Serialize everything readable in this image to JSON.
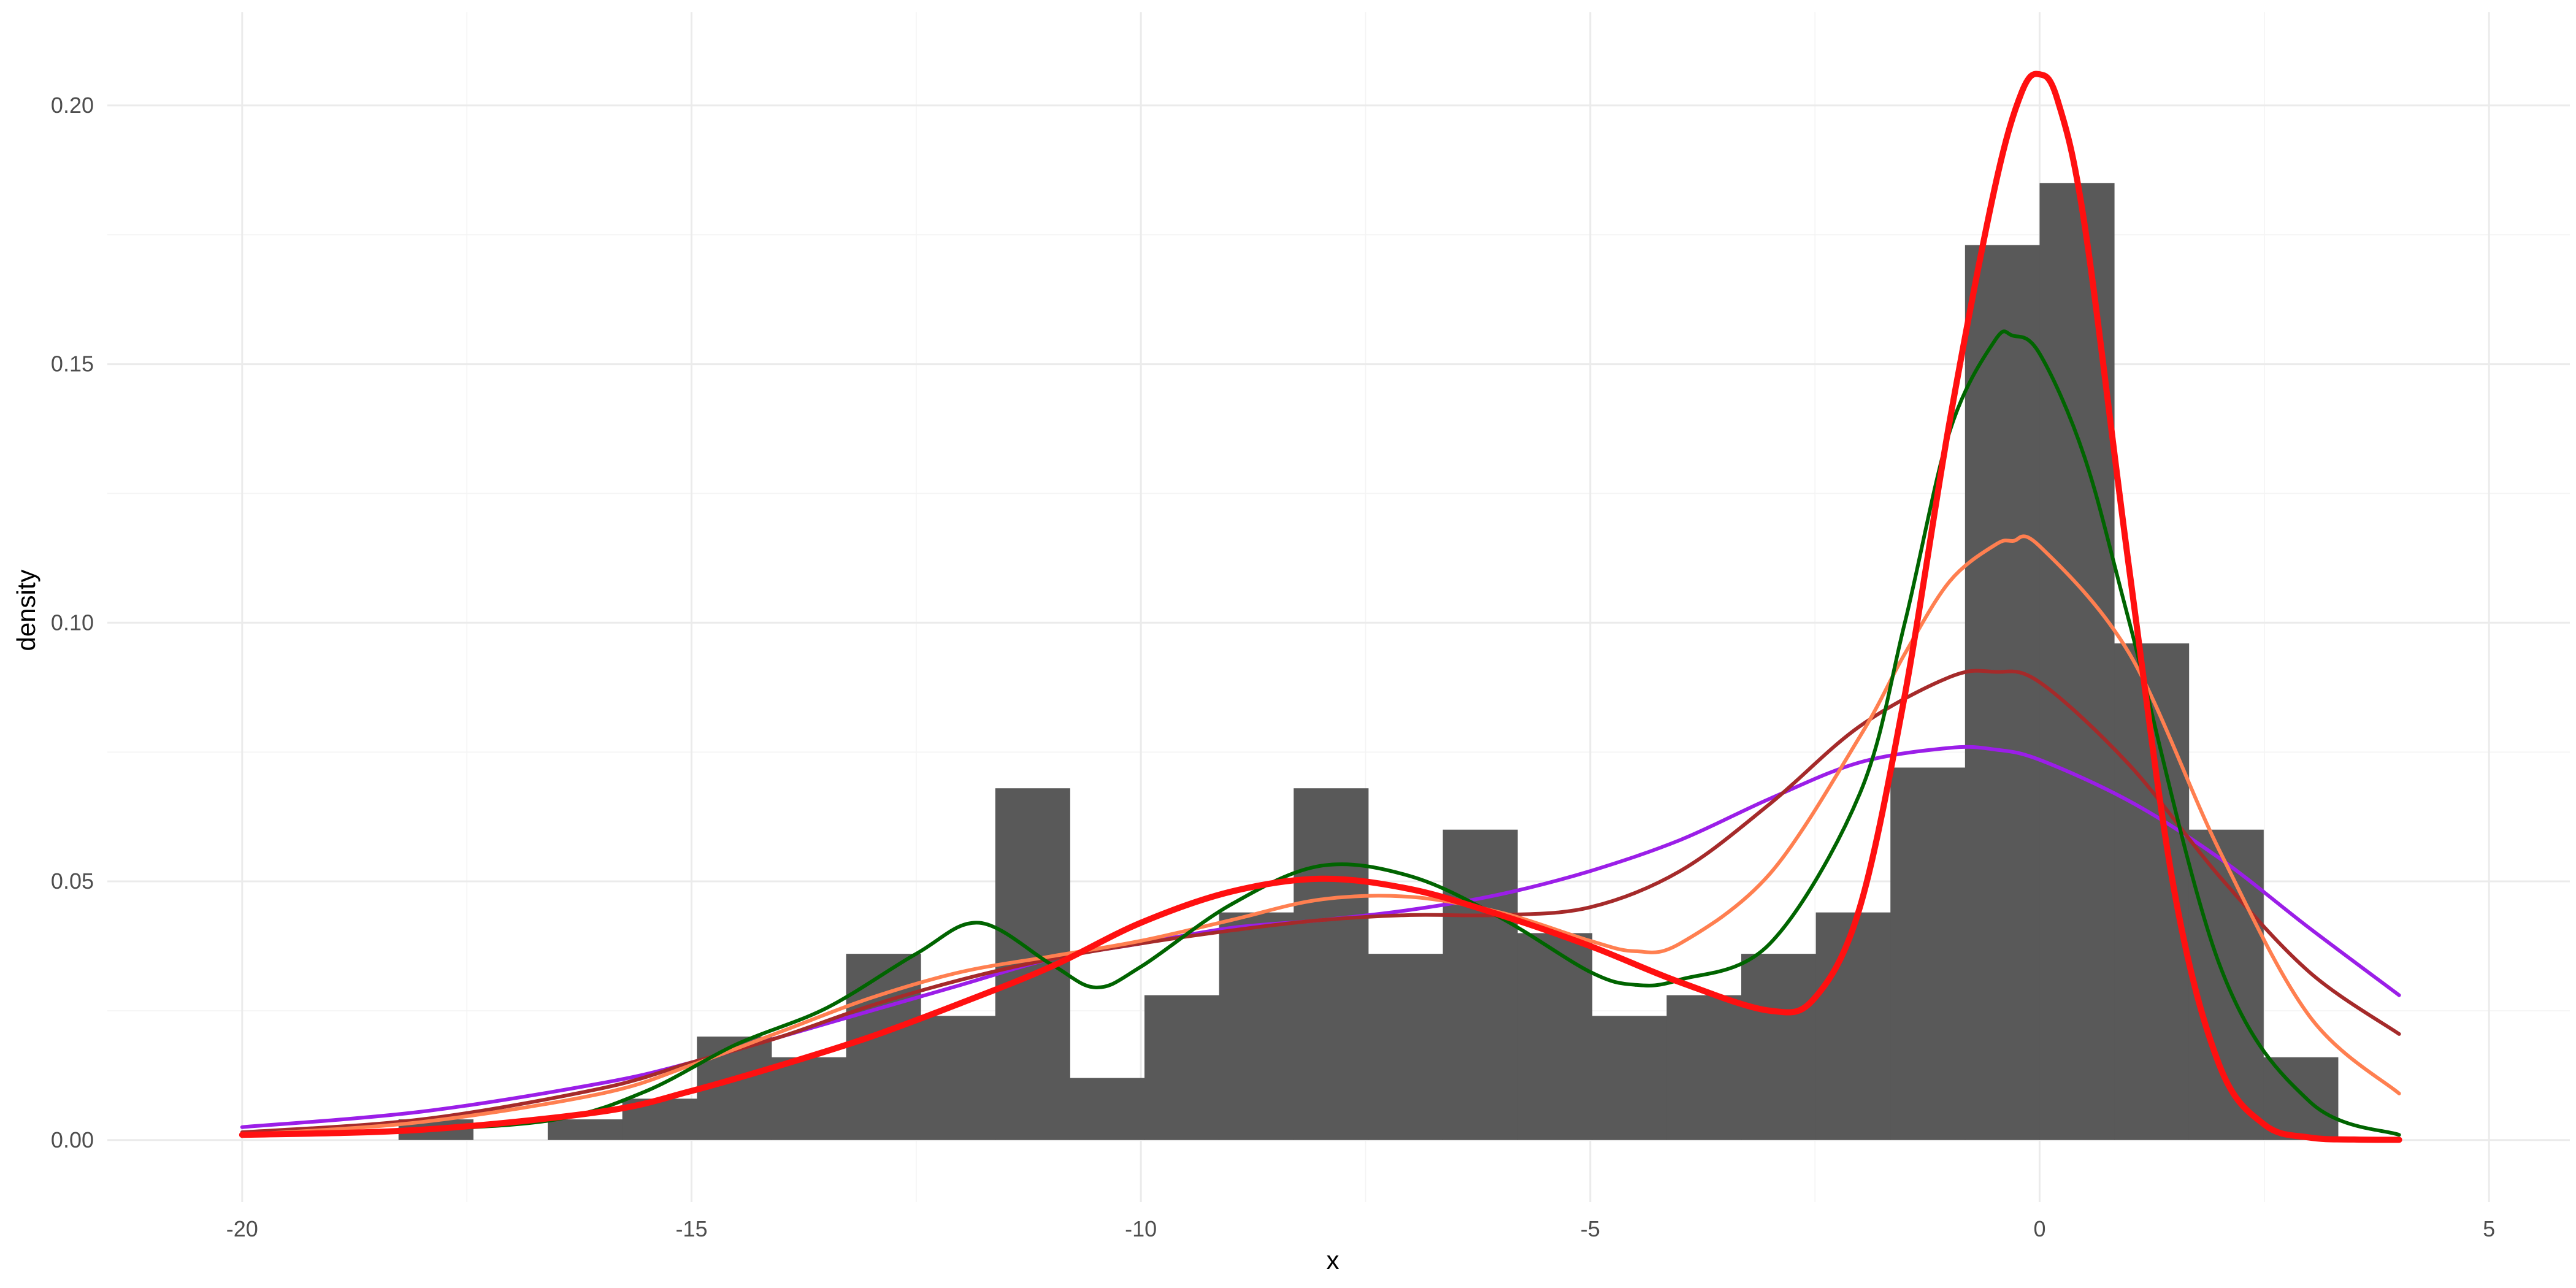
{
  "chart_data": {
    "type": "histogram_with_density",
    "title": "",
    "xlabel": "x",
    "ylabel": "density",
    "xlim": [
      -21.5,
      5.9
    ],
    "ylim": [
      -0.012,
      0.218
    ],
    "x_ticks": [
      -20,
      -15,
      -10,
      -5,
      0,
      5
    ],
    "x_tick_labels": [
      "-20",
      "-15",
      "-10",
      "-5",
      "0",
      "5"
    ],
    "y_ticks": [
      0.0,
      0.05,
      0.1,
      0.15,
      0.2
    ],
    "y_tick_labels": [
      "0.00",
      "0.05",
      "0.10",
      "0.15",
      "0.20"
    ],
    "grid": true,
    "colors": {
      "bars": "#595959",
      "grid_major": "#ebebeb",
      "grid_minor": "#f4f4f4"
    },
    "histogram": {
      "bin_width": 0.83,
      "bins": [
        {
          "x0": -18.26,
          "x1": -17.43,
          "density": 0.004
        },
        {
          "x0": -17.43,
          "x1": -16.6,
          "density": 0.0
        },
        {
          "x0": -16.6,
          "x1": -15.77,
          "density": 0.004
        },
        {
          "x0": -15.77,
          "x1": -14.94,
          "density": 0.008
        },
        {
          "x0": -14.94,
          "x1": -14.11,
          "density": 0.02
        },
        {
          "x0": -14.11,
          "x1": -13.28,
          "density": 0.016
        },
        {
          "x0": -13.28,
          "x1": -12.45,
          "density": 0.036
        },
        {
          "x0": -12.45,
          "x1": -11.62,
          "density": 0.024
        },
        {
          "x0": -11.62,
          "x1": -10.79,
          "density": 0.068
        },
        {
          "x0": -10.79,
          "x1": -9.96,
          "density": 0.012
        },
        {
          "x0": -9.96,
          "x1": -9.13,
          "density": 0.028
        },
        {
          "x0": -9.13,
          "x1": -8.3,
          "density": 0.044
        },
        {
          "x0": -8.3,
          "x1": -7.47,
          "density": 0.068
        },
        {
          "x0": -7.47,
          "x1": -6.64,
          "density": 0.036
        },
        {
          "x0": -6.64,
          "x1": -5.81,
          "density": 0.06
        },
        {
          "x0": -5.81,
          "x1": -4.98,
          "density": 0.04
        },
        {
          "x0": -4.98,
          "x1": -4.15,
          "density": 0.024
        },
        {
          "x0": -4.15,
          "x1": -3.32,
          "density": 0.028
        },
        {
          "x0": -3.32,
          "x1": -2.49,
          "density": 0.036
        },
        {
          "x0": -2.49,
          "x1": -1.66,
          "density": 0.044
        },
        {
          "x0": -1.66,
          "x1": -0.83,
          "density": 0.072
        },
        {
          "x0": -0.83,
          "x1": 0.0,
          "density": 0.173
        },
        {
          "x0": 0.0,
          "x1": 0.83,
          "density": 0.185
        },
        {
          "x0": 0.83,
          "x1": 1.66,
          "density": 0.096
        },
        {
          "x0": 1.66,
          "x1": 2.49,
          "density": 0.06
        },
        {
          "x0": 2.49,
          "x1": 3.32,
          "density": 0.016
        }
      ]
    },
    "series": [
      {
        "color": "#9b1ee8",
        "line_width": 6,
        "x": [
          -20,
          -18,
          -16,
          -15,
          -14,
          -13,
          -12,
          -11,
          -10,
          -9,
          -8,
          -7,
          -6,
          -5,
          -4,
          -3,
          -2,
          -1,
          -0.5,
          0,
          1,
          2,
          3,
          4
        ],
        "y": [
          0.0025,
          0.0055,
          0.011,
          0.015,
          0.02,
          0.025,
          0.03,
          0.035,
          0.038,
          0.041,
          0.0425,
          0.0445,
          0.0475,
          0.052,
          0.058,
          0.066,
          0.073,
          0.0758,
          0.0755,
          0.0735,
          0.0655,
          0.0545,
          0.041,
          0.028
        ]
      },
      {
        "color": "#a52a2a",
        "line_width": 6,
        "x": [
          -20,
          -18,
          -16,
          -15,
          -14,
          -13,
          -12,
          -11,
          -10,
          -9,
          -8,
          -7,
          -6,
          -5,
          -4,
          -3,
          -2,
          -1,
          -0.5,
          0,
          1,
          2,
          3,
          4
        ],
        "y": [
          0.0015,
          0.004,
          0.01,
          0.015,
          0.02,
          0.026,
          0.031,
          0.035,
          0.038,
          0.0405,
          0.0425,
          0.0435,
          0.0435,
          0.045,
          0.052,
          0.065,
          0.08,
          0.0895,
          0.0905,
          0.0885,
          0.0725,
          0.051,
          0.0325,
          0.0205
        ]
      },
      {
        "color": "#ff7f50",
        "line_width": 6,
        "x": [
          -20,
          -18,
          -16,
          -15,
          -14,
          -13,
          -12,
          -11,
          -10,
          -9,
          -8,
          -7,
          -6,
          -5,
          -4.5,
          -4,
          -3,
          -2,
          -1.5,
          -1,
          -0.5,
          -0.3,
          0,
          1,
          2,
          3,
          4
        ],
        "y": [
          0.001,
          0.0035,
          0.009,
          0.0145,
          0.021,
          0.0275,
          0.0325,
          0.0355,
          0.0385,
          0.0425,
          0.0465,
          0.047,
          0.044,
          0.0385,
          0.0365,
          0.038,
          0.0515,
          0.078,
          0.094,
          0.108,
          0.115,
          0.1158,
          0.1148,
          0.094,
          0.056,
          0.024,
          0.009
        ]
      },
      {
        "color": "#006400",
        "line_width": 6,
        "x": [
          -20,
          -18,
          -16.5,
          -15.5,
          -14.5,
          -13.5,
          -12.5,
          -11.8,
          -11,
          -10.5,
          -10,
          -9,
          -8,
          -7,
          -6,
          -5,
          -4.5,
          -4,
          -3,
          -2,
          -1.5,
          -1,
          -0.5,
          -0.3,
          0,
          0.5,
          1,
          2,
          3,
          4
        ],
        "y": [
          0.0008,
          0.002,
          0.004,
          0.0095,
          0.0185,
          0.0255,
          0.036,
          0.042,
          0.034,
          0.0295,
          0.0335,
          0.0455,
          0.053,
          0.051,
          0.043,
          0.0325,
          0.03,
          0.031,
          0.038,
          0.067,
          0.1,
          0.137,
          0.1545,
          0.1555,
          0.152,
          0.132,
          0.1,
          0.034,
          0.0075,
          0.001
        ]
      },
      {
        "color": "#ff1010",
        "line_width": 10,
        "x": [
          -20,
          -18,
          -16,
          -15,
          -14,
          -13,
          -12,
          -11,
          -10,
          -9,
          -8,
          -7,
          -6,
          -5,
          -4,
          -3,
          -2.5,
          -2,
          -1.5,
          -1,
          -0.5,
          -0.2,
          0,
          0.2,
          0.5,
          1,
          1.5,
          2,
          2.5,
          3,
          3.5,
          4
        ],
        "y": [
          0.001,
          0.002,
          0.0055,
          0.0095,
          0.0145,
          0.02,
          0.0265,
          0.0335,
          0.042,
          0.048,
          0.0505,
          0.0485,
          0.0435,
          0.0375,
          0.0305,
          0.025,
          0.0275,
          0.045,
          0.086,
          0.139,
          0.184,
          0.2025,
          0.206,
          0.201,
          0.177,
          0.11,
          0.048,
          0.0145,
          0.003,
          0.0005,
          0.0001,
          5e-05
        ]
      }
    ]
  }
}
